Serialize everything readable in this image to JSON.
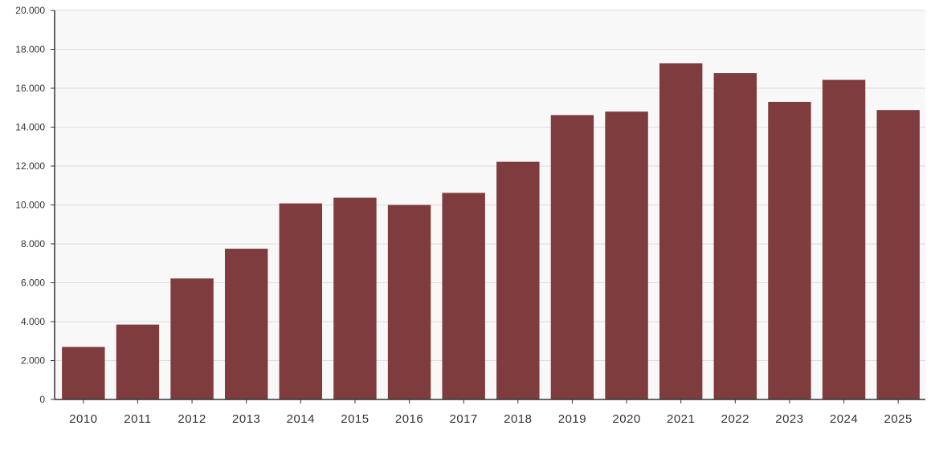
{
  "chart_data": {
    "type": "bar",
    "categories": [
      "2010",
      "2011",
      "2012",
      "2013",
      "2014",
      "2015",
      "2016",
      "2017",
      "2018",
      "2019",
      "2020",
      "2021",
      "2022",
      "2023",
      "2024",
      "2025"
    ],
    "values": [
      2700,
      3850,
      6220,
      7750,
      10080,
      10370,
      10000,
      10620,
      12220,
      14620,
      14800,
      17280,
      16780,
      15300,
      16430,
      14880
    ],
    "ylim": [
      0,
      20000
    ],
    "yticks": [
      0,
      2000,
      4000,
      6000,
      8000,
      10000,
      12000,
      14000,
      16000,
      18000,
      20000
    ],
    "ytick_labels": [
      "0",
      "2.000",
      "4.000",
      "6.000",
      "8.000",
      "10.000",
      "12.000",
      "14.000",
      "16.000",
      "18.000",
      "20.000"
    ],
    "grid": true,
    "colors": {
      "bar": "#7f3c3e",
      "plot_background": "#f8f8f8",
      "grid": "#dddddd",
      "axis": "#333333"
    }
  }
}
